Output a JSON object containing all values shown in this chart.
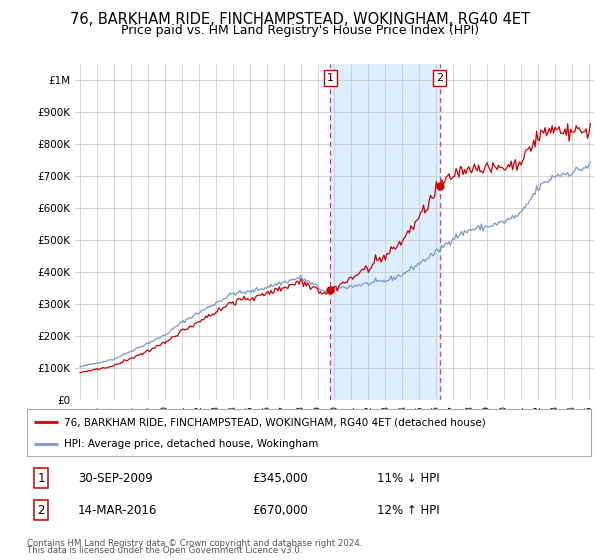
{
  "title": "76, BARKHAM RIDE, FINCHAMPSTEAD, WOKINGHAM, RG40 4ET",
  "subtitle": "Price paid vs. HM Land Registry's House Price Index (HPI)",
  "title_fontsize": 10.5,
  "subtitle_fontsize": 9,
  "ylim": [
    0,
    1050000
  ],
  "yticks": [
    0,
    100000,
    200000,
    300000,
    400000,
    500000,
    600000,
    700000,
    800000,
    900000,
    1000000
  ],
  "ytick_labels": [
    "£0",
    "£100K",
    "£200K",
    "£300K",
    "£400K",
    "£500K",
    "£600K",
    "£700K",
    "£800K",
    "£900K",
    "£1M"
  ],
  "xlim_start": 1994.7,
  "xlim_end": 2025.3,
  "sale1_x": 2009.75,
  "sale1_y": 345000,
  "sale2_x": 2016.21,
  "sale2_y": 670000,
  "line1_color": "#cc0000",
  "line2_color": "#7799cc",
  "shade_color": "#ddeeff",
  "vline_color": "#cc0000",
  "legend1_label": "76, BARKHAM RIDE, FINCHAMPSTEAD, WOKINGHAM, RG40 4ET (detached house)",
  "legend2_label": "HPI: Average price, detached house, Wokingham",
  "footer1": "Contains HM Land Registry data © Crown copyright and database right 2024.",
  "footer2": "This data is licensed under the Open Government Licence v3.0.",
  "bg_color": "#ffffff",
  "grid_color": "#cccccc",
  "sale1_label": "1",
  "sale2_label": "2",
  "sale1_date": "30-SEP-2009",
  "sale1_price": "£345,000",
  "sale1_hpi": "11% ↓ HPI",
  "sale2_date": "14-MAR-2016",
  "sale2_price": "£670,000",
  "sale2_hpi": "12% ↑ HPI"
}
